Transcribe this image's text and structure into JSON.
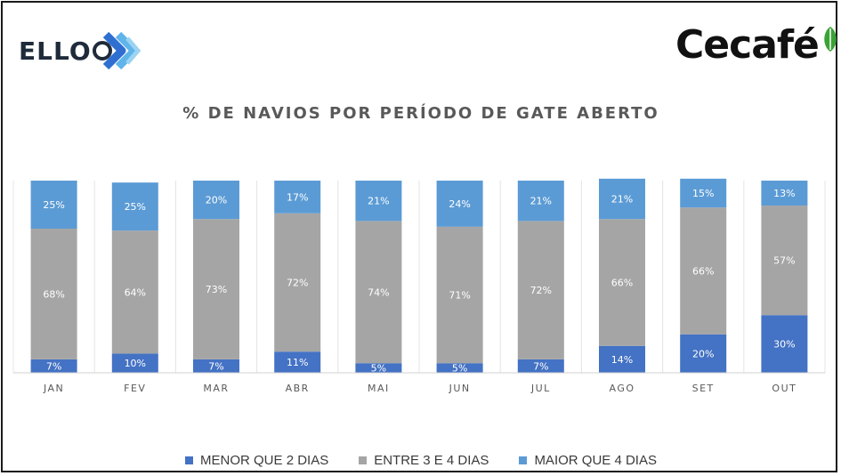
{
  "logos": {
    "left": "ELLO",
    "right": "Cecafé"
  },
  "colors": {
    "menor": "#4472c4",
    "entre": "#a5a5a5",
    "maior": "#5b9bd5",
    "label_light": "#ffffff"
  },
  "chart_data": {
    "type": "bar",
    "stacked": "percent",
    "title": "% DE NAVIOS POR PERÍODO DE GATE ABERTO",
    "categories": [
      "JAN",
      "FEV",
      "MAR",
      "ABR",
      "MAI",
      "JUN",
      "JUL",
      "AGO",
      "SET",
      "OUT"
    ],
    "series": [
      {
        "name": "MENOR QUE 2 DIAS",
        "values": [
          7,
          10,
          7,
          11,
          5,
          5,
          7,
          14,
          20,
          30
        ],
        "labels": [
          "7%",
          "10%",
          "7%",
          "11%",
          "5%",
          "5%",
          "7%",
          "14%",
          "20%",
          "30%"
        ]
      },
      {
        "name": "ENTRE 3 E 4 DIAS",
        "values": [
          68,
          64,
          73,
          72,
          74,
          71,
          72,
          66,
          66,
          57
        ],
        "labels": [
          "68%",
          "64%",
          "73%",
          "72%",
          "74%",
          "71%",
          "72%",
          "66%",
          "66%",
          "57%"
        ]
      },
      {
        "name": "MAIOR QUE 4 DIAS",
        "values": [
          25,
          25,
          20,
          17,
          21,
          24,
          21,
          21,
          15,
          13
        ],
        "labels": [
          "25%",
          "25%",
          "20%",
          "17%",
          "21%",
          "24%",
          "21%",
          "21%",
          "15%",
          "13%"
        ]
      }
    ],
    "ylim": [
      0,
      100
    ],
    "grid": false,
    "legend": "bottom"
  }
}
